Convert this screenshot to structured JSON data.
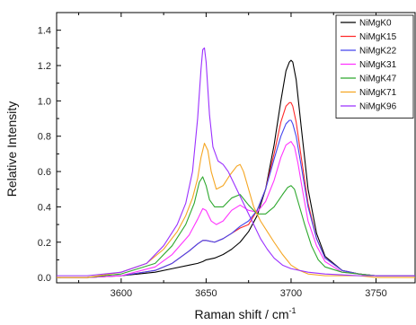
{
  "chart_data": {
    "type": "line",
    "xlabel": "Raman shift / cm",
    "xlabel_sup": "-1",
    "ylabel": "Relative Intensity",
    "xlim": [
      3562,
      3773
    ],
    "ylim": [
      -0.03,
      1.5
    ],
    "xticks": [
      3600,
      3650,
      3700,
      3750
    ],
    "yticks": [
      0.0,
      0.2,
      0.4,
      0.6,
      0.8,
      1.0,
      1.2,
      1.4
    ],
    "ytick_labels": [
      "0.0",
      "0.2",
      "0.4",
      "0.6",
      "0.8",
      "1.0",
      "1.2",
      "1.4"
    ],
    "grid": false,
    "legend_position": "top-right",
    "series": [
      {
        "name": "NiMgK0",
        "color": "#000000",
        "x": [
          3562,
          3580,
          3600,
          3610,
          3620,
          3630,
          3640,
          3645,
          3648,
          3650,
          3655,
          3660,
          3665,
          3670,
          3675,
          3680,
          3685,
          3690,
          3694,
          3697,
          3699,
          3700,
          3701,
          3703,
          3706,
          3710,
          3715,
          3720,
          3730,
          3740,
          3750,
          3760,
          3773
        ],
        "y": [
          0.0,
          0.0,
          0.01,
          0.02,
          0.03,
          0.05,
          0.07,
          0.08,
          0.09,
          0.1,
          0.11,
          0.13,
          0.16,
          0.2,
          0.26,
          0.35,
          0.5,
          0.75,
          1.0,
          1.17,
          1.22,
          1.23,
          1.22,
          1.12,
          0.85,
          0.5,
          0.25,
          0.12,
          0.04,
          0.02,
          0.01,
          0.01,
          0.01
        ]
      },
      {
        "name": "NiMgK15",
        "color": "#ff2a2a",
        "x": [
          3562,
          3580,
          3600,
          3620,
          3630,
          3640,
          3645,
          3648,
          3650,
          3655,
          3660,
          3665,
          3670,
          3675,
          3680,
          3685,
          3690,
          3694,
          3697,
          3699,
          3700,
          3701,
          3703,
          3706,
          3710,
          3715,
          3720,
          3730,
          3740,
          3750,
          3773
        ],
        "y": [
          0.0,
          0.0,
          0.01,
          0.04,
          0.08,
          0.15,
          0.19,
          0.21,
          0.21,
          0.2,
          0.22,
          0.25,
          0.28,
          0.3,
          0.38,
          0.5,
          0.7,
          0.88,
          0.97,
          0.99,
          0.99,
          0.97,
          0.88,
          0.68,
          0.42,
          0.22,
          0.11,
          0.04,
          0.02,
          0.01,
          0.01
        ]
      },
      {
        "name": "NiMgK22",
        "color": "#4444ee",
        "x": [
          3562,
          3580,
          3600,
          3620,
          3630,
          3640,
          3645,
          3648,
          3650,
          3655,
          3660,
          3665,
          3670,
          3675,
          3680,
          3685,
          3690,
          3694,
          3697,
          3699,
          3700,
          3701,
          3703,
          3706,
          3710,
          3715,
          3720,
          3730,
          3740,
          3750,
          3773
        ],
        "y": [
          0.0,
          0.0,
          0.01,
          0.04,
          0.08,
          0.15,
          0.19,
          0.21,
          0.21,
          0.2,
          0.22,
          0.25,
          0.29,
          0.32,
          0.38,
          0.5,
          0.67,
          0.8,
          0.87,
          0.89,
          0.89,
          0.87,
          0.8,
          0.63,
          0.4,
          0.22,
          0.11,
          0.04,
          0.02,
          0.01,
          0.01
        ]
      },
      {
        "name": "NiMgK31",
        "color": "#ff33ff",
        "x": [
          3562,
          3580,
          3600,
          3620,
          3630,
          3640,
          3645,
          3648,
          3650,
          3653,
          3656,
          3660,
          3665,
          3670,
          3675,
          3680,
          3685,
          3690,
          3694,
          3697,
          3700,
          3702,
          3704,
          3707,
          3710,
          3715,
          3720,
          3730,
          3740,
          3750,
          3773
        ],
        "y": [
          0.0,
          0.0,
          0.01,
          0.06,
          0.13,
          0.24,
          0.33,
          0.39,
          0.38,
          0.32,
          0.3,
          0.32,
          0.38,
          0.41,
          0.38,
          0.37,
          0.43,
          0.55,
          0.68,
          0.75,
          0.77,
          0.74,
          0.65,
          0.48,
          0.32,
          0.18,
          0.09,
          0.03,
          0.02,
          0.01,
          0.01
        ]
      },
      {
        "name": "NiMgK47",
        "color": "#2ea82e",
        "x": [
          3562,
          3580,
          3600,
          3620,
          3630,
          3638,
          3643,
          3646,
          3648,
          3650,
          3652,
          3655,
          3660,
          3665,
          3670,
          3675,
          3680,
          3685,
          3690,
          3695,
          3698,
          3700,
          3702,
          3705,
          3708,
          3712,
          3716,
          3720,
          3730,
          3740,
          3750,
          3773
        ],
        "y": [
          0.0,
          0.0,
          0.02,
          0.08,
          0.18,
          0.3,
          0.42,
          0.54,
          0.57,
          0.52,
          0.44,
          0.4,
          0.4,
          0.45,
          0.47,
          0.41,
          0.36,
          0.36,
          0.4,
          0.47,
          0.51,
          0.52,
          0.5,
          0.4,
          0.3,
          0.18,
          0.1,
          0.06,
          0.03,
          0.02,
          0.01,
          0.01
        ]
      },
      {
        "name": "NiMgK71",
        "color": "#f5a623",
        "x": [
          3562,
          3580,
          3600,
          3615,
          3625,
          3633,
          3638,
          3642,
          3645,
          3647,
          3649,
          3651,
          3653,
          3656,
          3660,
          3664,
          3668,
          3670,
          3672,
          3675,
          3678,
          3682,
          3686,
          3690,
          3695,
          3700,
          3705,
          3710,
          3720,
          3730,
          3740,
          3750,
          3773
        ],
        "y": [
          0.0,
          0.0,
          0.03,
          0.08,
          0.16,
          0.26,
          0.35,
          0.45,
          0.56,
          0.68,
          0.76,
          0.72,
          0.6,
          0.5,
          0.52,
          0.58,
          0.63,
          0.64,
          0.6,
          0.5,
          0.4,
          0.32,
          0.26,
          0.2,
          0.13,
          0.07,
          0.04,
          0.02,
          0.01,
          0.01,
          0.01,
          0.0,
          0.0
        ]
      },
      {
        "name": "NiMgK96",
        "color": "#9b30ff",
        "x": [
          3562,
          3580,
          3600,
          3615,
          3625,
          3633,
          3638,
          3642,
          3645,
          3647,
          3648,
          3649,
          3650,
          3652,
          3654,
          3657,
          3660,
          3663,
          3666,
          3670,
          3674,
          3678,
          3682,
          3686,
          3690,
          3695,
          3700,
          3710,
          3720,
          3740,
          3773
        ],
        "y": [
          0.01,
          0.01,
          0.03,
          0.08,
          0.18,
          0.3,
          0.42,
          0.6,
          0.9,
          1.18,
          1.29,
          1.3,
          1.22,
          0.92,
          0.74,
          0.66,
          0.64,
          0.6,
          0.54,
          0.46,
          0.38,
          0.3,
          0.22,
          0.16,
          0.11,
          0.07,
          0.05,
          0.03,
          0.02,
          0.01,
          0.01
        ]
      }
    ]
  }
}
